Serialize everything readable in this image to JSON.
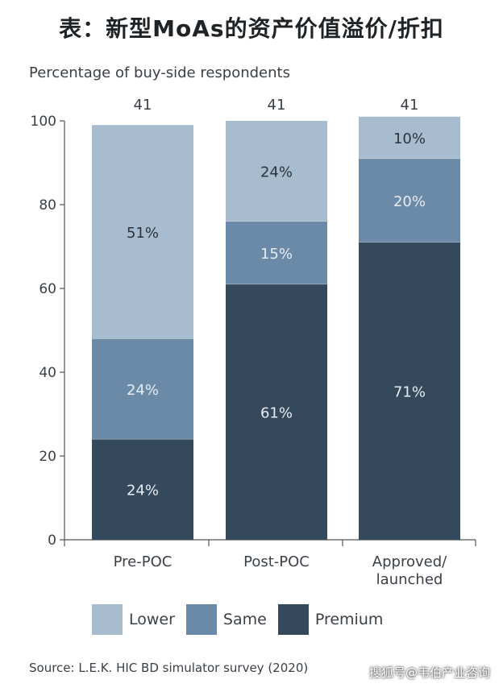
{
  "title": "表：新型MoAs的资产价值溢价/折扣",
  "watermark": "搜狐号@韦伯产业咨询",
  "colors": {
    "lower": "#a7bccf",
    "same": "#6a8aa7",
    "premium": "#34495c",
    "axis": "#555555",
    "label_on_light": "#2b333b",
    "label_on_dark": "#e6ecf2"
  },
  "chart_data": {
    "type": "bar",
    "stacked": true,
    "ylabel": "Percentage of buy-side respondents",
    "ylim": [
      0,
      100
    ],
    "yticks": [
      0,
      20,
      40,
      60,
      80,
      100
    ],
    "categories": [
      "Pre-POC",
      "Post-POC",
      "Approved/\nlaunched"
    ],
    "counts": [
      "41",
      "41",
      "41"
    ],
    "series": [
      {
        "name": "Premium",
        "values": [
          24,
          61,
          71
        ],
        "labels": [
          "24%",
          "61%",
          "71%"
        ]
      },
      {
        "name": "Same",
        "values": [
          24,
          15,
          20
        ],
        "labels": [
          "24%",
          "15%",
          "20%"
        ]
      },
      {
        "name": "Lower",
        "values": [
          51,
          24,
          10
        ],
        "labels": [
          "51%",
          "24%",
          "10%"
        ]
      }
    ],
    "legend": [
      "Lower",
      "Same",
      "Premium"
    ],
    "legend_position": "bottom",
    "grid": false
  },
  "source": "Source: L.E.K. HIC BD simulator survey (2020)"
}
